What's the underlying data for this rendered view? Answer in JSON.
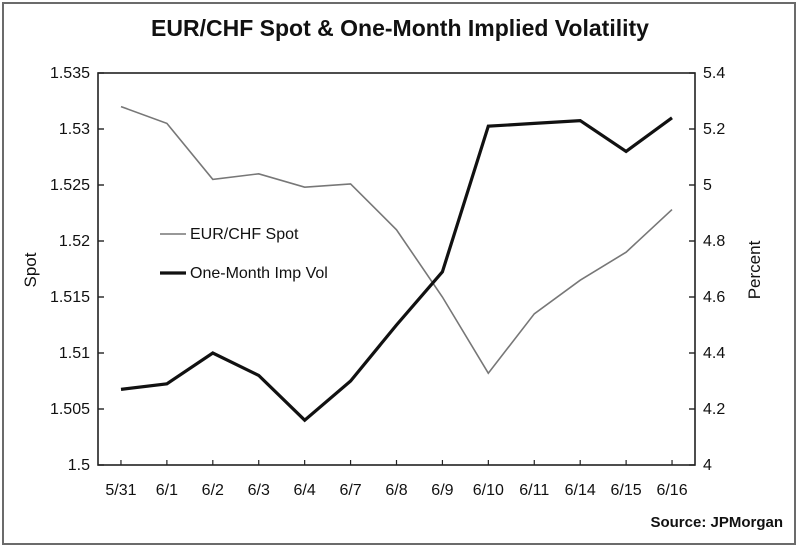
{
  "chart_data": {
    "type": "line",
    "title": "EUR/CHF Spot & One-Month Implied Volatility",
    "categories": [
      "5/31",
      "6/1",
      "6/2",
      "6/3",
      "6/4",
      "6/7",
      "6/8",
      "6/9",
      "6/10",
      "6/11",
      "6/14",
      "6/15",
      "6/16"
    ],
    "y_left": {
      "label": "Spot",
      "min": 1.5,
      "max": 1.535,
      "ticks": [
        "1.5",
        "1.505",
        "1.51",
        "1.515",
        "1.52",
        "1.525",
        "1.53",
        "1.535"
      ]
    },
    "y_right": {
      "label": "Percent",
      "min": 4,
      "max": 5.4,
      "ticks": [
        "4",
        "4.2",
        "4.4",
        "4.6",
        "4.8",
        "5",
        "5.2",
        "5.4"
      ]
    },
    "series": [
      {
        "name": "EUR/CHF Spot",
        "axis": "left",
        "color": "#777777",
        "values": [
          1.532,
          1.5305,
          1.5255,
          1.526,
          1.5248,
          1.5251,
          1.521,
          1.515,
          1.5082,
          1.5135,
          1.5165,
          1.519,
          1.5228
        ]
      },
      {
        "name": "One-Month Imp Vol",
        "axis": "right",
        "color": "#111111",
        "values": [
          4.27,
          4.29,
          4.4,
          4.32,
          4.16,
          4.3,
          4.5,
          4.69,
          5.21,
          5.22,
          5.23,
          5.12,
          5.24
        ]
      }
    ],
    "grid": false,
    "legend_position": "center-left"
  },
  "source": "Source: JPMorgan"
}
